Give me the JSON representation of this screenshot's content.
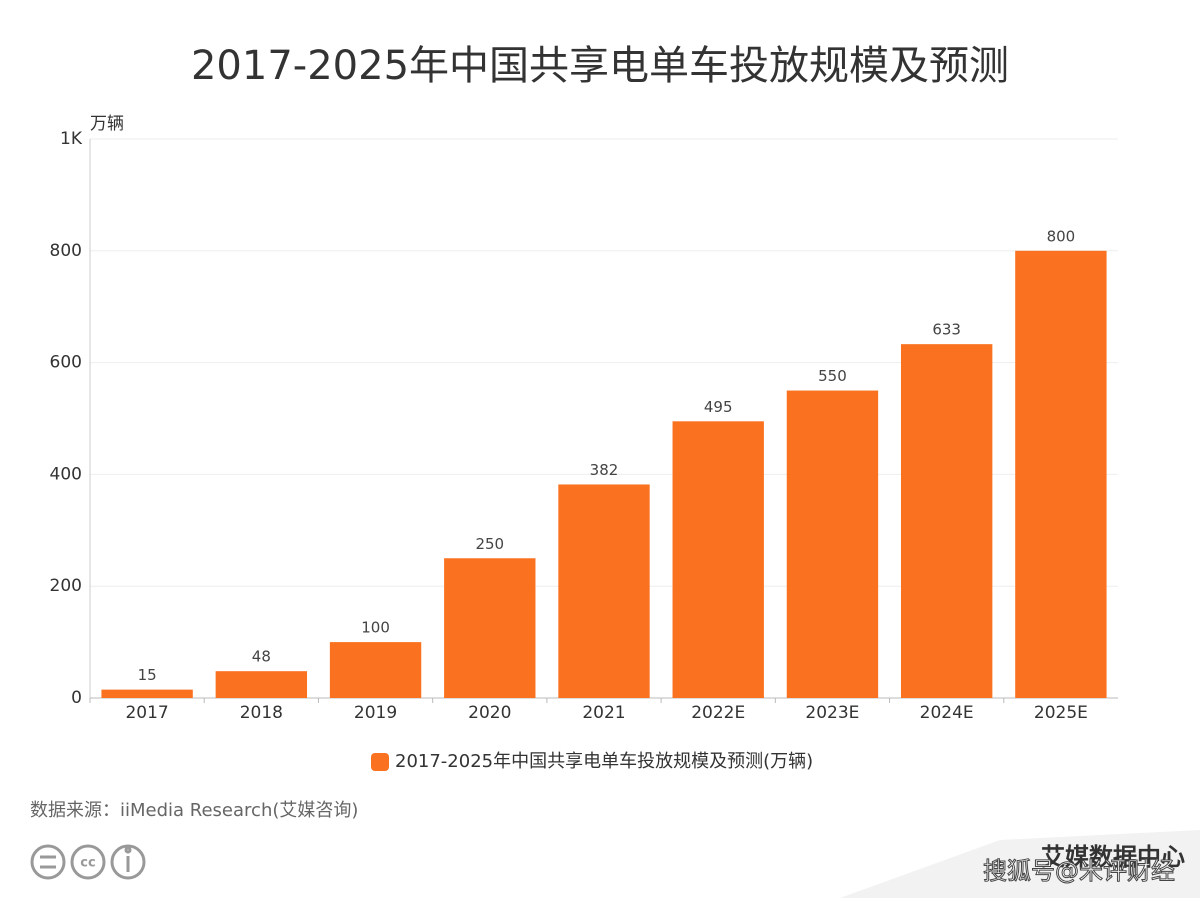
{
  "chart_data": {
    "type": "bar",
    "title": "2017-2025年中国共享电单车投放规模及预测",
    "y_axis_label": "万辆",
    "categories": [
      "2017",
      "2018",
      "2019",
      "2020",
      "2021",
      "2022E",
      "2023E",
      "2024E",
      "2025E"
    ],
    "series": [
      {
        "name": "2017-2025年中国共享电单车投放规模及预测(万辆)",
        "color": "#fa7220",
        "values": [
          15,
          48,
          100,
          250,
          382,
          495,
          550,
          633,
          800
        ]
      }
    ],
    "ylim": [
      0,
      1000
    ],
    "yticks": [
      0,
      200,
      400,
      600,
      800,
      {
        "value": 1000,
        "label": "1K"
      }
    ],
    "grid": true,
    "source": "数据来源：iiMedia Research(艾媒咨询)",
    "logo": "艾媒数据中心",
    "watermark": "搜狐号@米评财经"
  }
}
